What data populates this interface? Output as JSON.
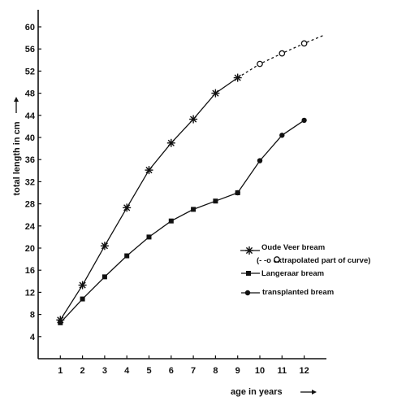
{
  "chart_data": {
    "type": "line",
    "xlabel": "age in years",
    "ylabel": "total length in cm",
    "xlim": [
      0,
      14
    ],
    "ylim": [
      0,
      62
    ],
    "x_ticks": [
      1,
      2,
      3,
      4,
      5,
      6,
      7,
      8,
      9,
      10,
      11,
      12
    ],
    "y_ticks": [
      4,
      8,
      12,
      16,
      20,
      24,
      28,
      32,
      36,
      40,
      44,
      48,
      52,
      56,
      60
    ],
    "grid": false,
    "legend_position": "center-right",
    "series": [
      {
        "name": "Oude Veer bream",
        "marker": "asterisk",
        "line": "solid",
        "x": [
          1,
          2,
          3,
          4,
          5,
          6,
          7,
          8,
          9
        ],
        "y": [
          7.0,
          13.3,
          20.4,
          27.3,
          34.1,
          39.0,
          43.3,
          48.0,
          50.8
        ]
      },
      {
        "name": "extrapolated part of curve",
        "marker": "open-circle",
        "line": "dashed",
        "x": [
          10,
          11,
          12
        ],
        "y": [
          53.3,
          55.2,
          57.0
        ]
      },
      {
        "name": "Langeraar bream",
        "marker": "square",
        "line": "solid",
        "x": [
          1,
          2,
          3,
          4,
          5,
          6,
          7,
          8,
          9
        ],
        "y": [
          6.5,
          10.8,
          14.8,
          18.6,
          22.0,
          24.9,
          27.0,
          28.5,
          30.0
        ]
      },
      {
        "name": "transplanted bream",
        "marker": "filled-circle",
        "line": "solid",
        "x": [
          9,
          10,
          11,
          12
        ],
        "y": [
          30.0,
          35.8,
          40.4,
          43.1
        ]
      }
    ],
    "legend": [
      {
        "label": "Oude Veer bream",
        "symbol": "asterisk"
      },
      {
        "label": "(- -o extrapolated part of curve)",
        "symbol": "open-circle"
      },
      {
        "label": "Langeraar bream",
        "symbol": "square"
      },
      {
        "label": "transplanted bream",
        "symbol": "filled-circle"
      }
    ]
  }
}
